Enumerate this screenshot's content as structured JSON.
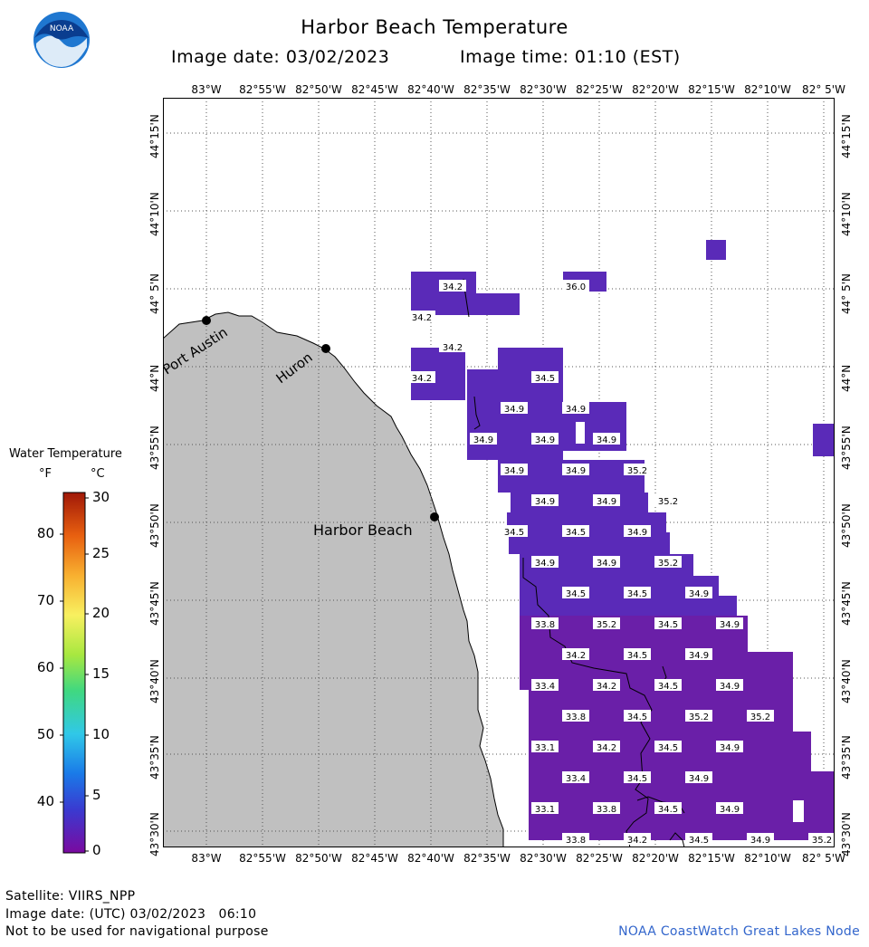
{
  "header": {
    "title": "Harbor Beach Temperature",
    "image_date": "Image date: 03/02/2023",
    "image_time": "Image time: 01:10 (EST)",
    "logo_text": "NOAA"
  },
  "map": {
    "lon_labels": [
      "83°W",
      "82°55'W",
      "82°50'W",
      "82°45'W",
      "82°40'W",
      "82°35'W",
      "82°30'W",
      "82°25'W",
      "82°20'W",
      "82°15'W",
      "82°10'W",
      "82° 5'W"
    ],
    "lat_labels": [
      "44°15'N",
      "44°10'N",
      "44° 5'N",
      "44°N",
      "43°55'N",
      "43°50'N",
      "43°45'N",
      "43°40'N",
      "43°35'N",
      "43°30'N"
    ],
    "places": [
      {
        "name": "Port Austin"
      },
      {
        "name": "Huron"
      },
      {
        "name": "Harbor Beach"
      }
    ],
    "temperature_labels": [
      "34.2",
      "34.2",
      "36.0",
      "34.2",
      "34.2",
      "34.5",
      "34.9",
      "34.9",
      "34.9",
      "34.9",
      "34.9",
      "34.9",
      "34.9",
      "35.2",
      "34.9",
      "34.9",
      "35.2",
      "34.5",
      "34.5",
      "34.9",
      "34.9",
      "34.9",
      "35.2",
      "34.5",
      "34.5",
      "34.9",
      "33.8",
      "35.2",
      "34.5",
      "34.9",
      "34.2",
      "34.5",
      "34.9",
      "33.4",
      "34.2",
      "34.5",
      "34.9",
      "33.8",
      "34.5",
      "35.2",
      "35.2",
      "33.1",
      "34.2",
      "34.5",
      "34.9",
      "33.4",
      "34.5",
      "34.9",
      "33.1",
      "33.8",
      "34.5",
      "34.9",
      "33.8",
      "34.2",
      "34.5",
      "34.9",
      "35.2"
    ],
    "colors": {
      "land": "#c0c0c0",
      "water_cold": "#6a1fa8",
      "water_mid": "#5a2ab8",
      "grid": "#444444"
    }
  },
  "legend": {
    "title": "Water Temperature",
    "unit_f": "°F",
    "unit_c": "°C",
    "fahrenheit_ticks": [
      "80",
      "70",
      "60",
      "50",
      "40"
    ],
    "celsius_ticks": [
      "30",
      "25",
      "20",
      "15",
      "10",
      "5",
      "0"
    ]
  },
  "footer": {
    "satellite": "Satellite: VIIRS_NPP",
    "utc_date": "Image date: (UTC) 03/02/2023   06:10",
    "disclaimer": "Not to be used for navigational purpose",
    "credit": "NOAA CoastWatch Great Lakes Node"
  }
}
